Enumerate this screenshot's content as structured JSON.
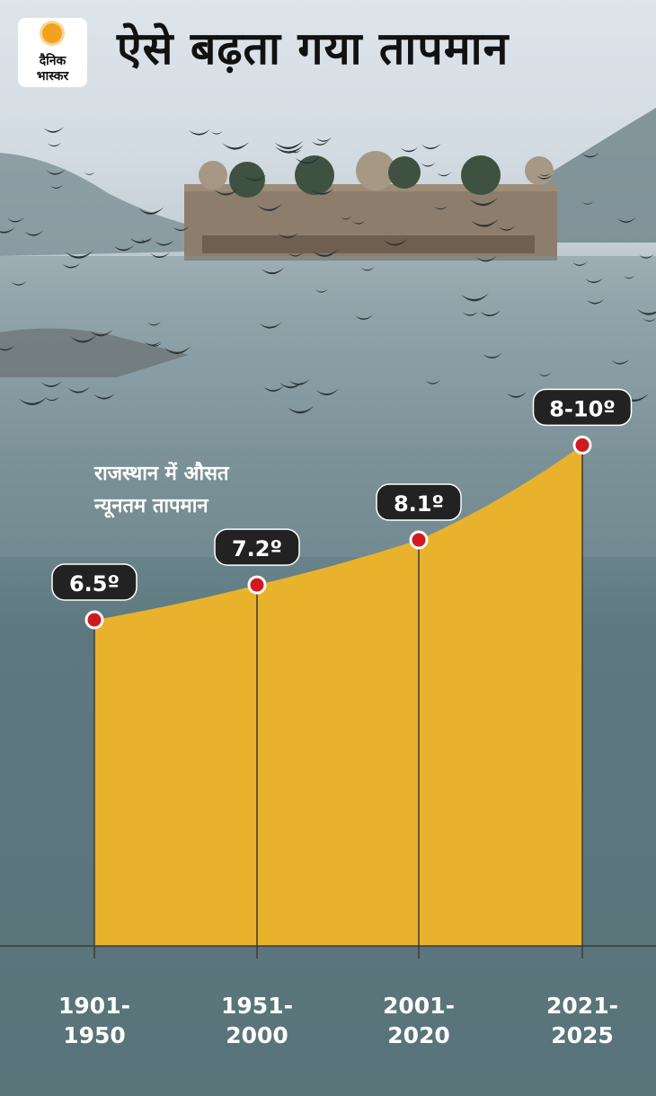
{
  "header": {
    "title": "ऐसे बढ़ता गया तापमान",
    "logo_text": [
      "दैनिक",
      "भास्कर"
    ]
  },
  "chart_data": {
    "type": "area",
    "title": "ऐसे बढ़ता गया तापमान",
    "subtitle": "राजस्थान में औसत न्यूनतम तापमान",
    "categories": [
      "1901-\n1950",
      "1951-\n2000",
      "2001-\n2020",
      "2021-\n2025"
    ],
    "category_lines": [
      [
        "1901-",
        "1950"
      ],
      [
        "1951-",
        "2000"
      ],
      [
        "2001-",
        "2020"
      ],
      [
        "2021-",
        "2025"
      ]
    ],
    "values": [
      6.5,
      7.2,
      8.1,
      [
        8,
        10
      ]
    ],
    "data_labels": [
      "6.5º",
      "7.2º",
      "8.1º",
      "8-10º"
    ],
    "unit": "°C",
    "colors": {
      "area": "#e8b22c",
      "marker": "#d11a1f",
      "label_bg": "#222222",
      "axis": "#3a3a3a"
    },
    "grid": false,
    "legend": "none"
  },
  "subtitle_lines": [
    "राजस्थान में औसत",
    "न्यूनतम तापमान"
  ]
}
